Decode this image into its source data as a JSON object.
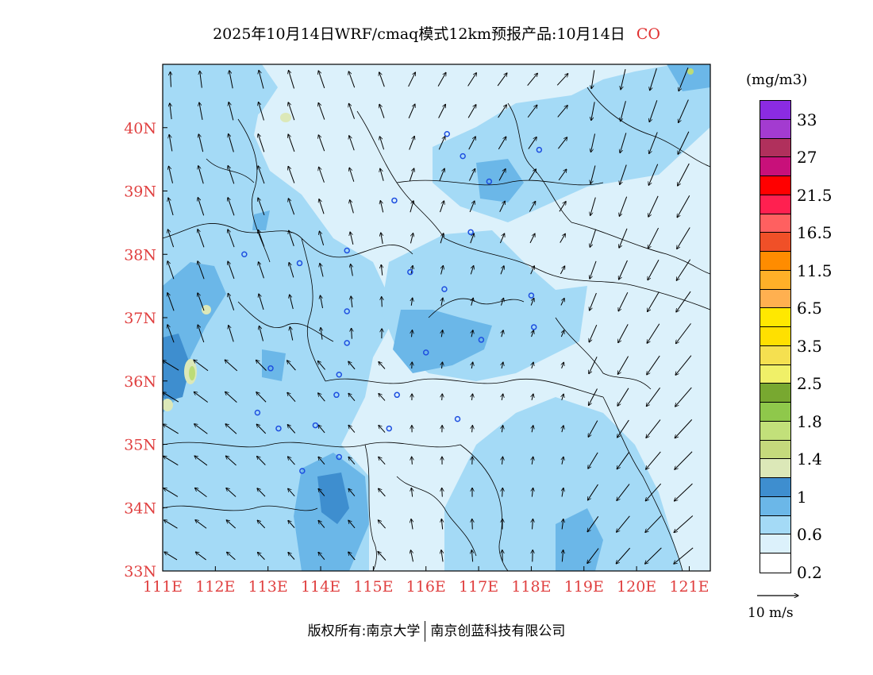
{
  "title": {
    "text": "2025年10月14日WRF/cmaq模式12km预报产品:10月14日",
    "species": "CO"
  },
  "map": {
    "lon_ticks": [
      "111E",
      "112E",
      "113E",
      "114E",
      "115E",
      "116E",
      "117E",
      "118E",
      "119E",
      "120E",
      "121E"
    ],
    "lat_ticks": [
      "33N",
      "34N",
      "35N",
      "36N",
      "37N",
      "38N",
      "39N",
      "40N"
    ],
    "lon_range": [
      111,
      121.4
    ],
    "lat_range": [
      33,
      41
    ],
    "axis_color": "#e04040",
    "field": "CO concentration",
    "colors": {
      "lt02": "#dcf1fb",
      "b02_06": "#a4daf6",
      "b06_08": "#6bb7e8",
      "b08_1": "#3e8ecf",
      "b1_14": "#dce8b8",
      "b14_18": "#bcdc77",
      "city_marker": "#1e4fe0"
    },
    "wind_note": "southerly/southeasterly flow west of 115E, northeasterly flow east of 118E"
  },
  "colorbar": {
    "unit": "(mg/m3)",
    "colors": [
      "#8b2be2",
      "#a33bd0",
      "#b0305c",
      "#c8107a",
      "#ff0000",
      "#ff2050",
      "#ff6060",
      "#f05028",
      "#ff8c00",
      "#ffb028",
      "#ffb050",
      "#ffe800",
      "#ffe000",
      "#f5e050",
      "#f0f068",
      "#78a830",
      "#8fc84b",
      "#c2e07a",
      "#c5d97c",
      "#dce8b8",
      "#3e8ecf",
      "#6bb7e8",
      "#a4daf6",
      "#dcf1fb",
      "#ffffff"
    ],
    "labels": [
      "33",
      "27",
      "21.5",
      "16.5",
      "11.5",
      "6.5",
      "3.5",
      "2.5",
      "1.8",
      "1.4",
      "1",
      "0.6",
      "0.2"
    ]
  },
  "reference_vector": {
    "label": "10 m/s"
  },
  "footer": {
    "left": "版权所有:南京大学",
    "right": "南京创蓝科技有限公司"
  }
}
